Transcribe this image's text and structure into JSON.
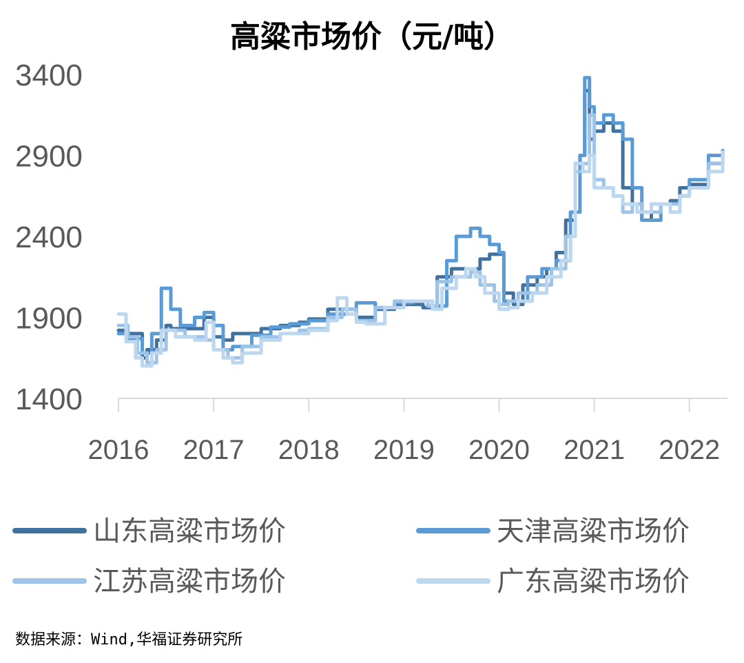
{
  "chart_data": {
    "type": "line",
    "title": "高粱市场价（元/吨）",
    "ylim": [
      1400,
      3400
    ],
    "yticks": [
      1400,
      1900,
      2400,
      2900,
      3400
    ],
    "xlim": [
      2016,
      2022.4
    ],
    "xticks": [
      2016,
      2017,
      2018,
      2019,
      2020,
      2021,
      2022
    ],
    "grid": false,
    "legend_position": "bottom",
    "source": "数据来源：Wind,华福证券研究所",
    "series": [
      {
        "name": "山东高粱市场价",
        "color": "#41719c",
        "x": [
          2016.0,
          2016.1,
          2016.25,
          2016.3,
          2016.4,
          2016.5,
          2016.55,
          2016.65,
          2016.8,
          2016.9,
          2017.0,
          2017.1,
          2017.2,
          2017.3,
          2017.5,
          2017.7,
          2017.9,
          2018.0,
          2018.2,
          2018.4,
          2018.5,
          2018.7,
          2018.9,
          2019.0,
          2019.2,
          2019.35,
          2019.5,
          2019.6,
          2019.7,
          2019.8,
          2019.9,
          2020.0,
          2020.05,
          2020.15,
          2020.25,
          2020.4,
          2020.5,
          2020.6,
          2020.7,
          2020.8,
          2020.85,
          2020.9,
          2020.95,
          2021.0,
          2021.1,
          2021.2,
          2021.3,
          2021.4,
          2021.5,
          2021.6,
          2021.8,
          2021.9,
          2022.0,
          2022.2,
          2022.35
        ],
        "y": [
          1820,
          1800,
          1650,
          1700,
          1760,
          1850,
          1830,
          1830,
          1830,
          1900,
          1780,
          1760,
          1800,
          1800,
          1830,
          1850,
          1870,
          1890,
          1950,
          1950,
          1900,
          1950,
          1980,
          1980,
          1960,
          2150,
          2200,
          2200,
          2200,
          2260,
          2290,
          2290,
          2050,
          1980,
          2100,
          2150,
          2200,
          2300,
          2500,
          2850,
          2900,
          3300,
          3000,
          3050,
          3100,
          3050,
          2700,
          2600,
          2500,
          2600,
          2620,
          2700,
          2720,
          2850,
          2920
        ]
      },
      {
        "name": "天津高粱市场价",
        "color": "#5b9bd5",
        "x": [
          2016.0,
          2016.1,
          2016.25,
          2016.35,
          2016.45,
          2016.55,
          2016.65,
          2016.8,
          2016.9,
          2017.0,
          2017.1,
          2017.2,
          2017.4,
          2017.6,
          2017.8,
          2018.0,
          2018.2,
          2018.4,
          2018.5,
          2018.7,
          2018.9,
          2019.1,
          2019.3,
          2019.45,
          2019.55,
          2019.7,
          2019.8,
          2019.9,
          2020.0,
          2020.05,
          2020.15,
          2020.3,
          2020.45,
          2020.6,
          2020.75,
          2020.85,
          2020.9,
          2020.95,
          2021.0,
          2021.1,
          2021.2,
          2021.3,
          2021.4,
          2021.5,
          2021.7,
          2021.9,
          2022.0,
          2022.2,
          2022.35
        ],
        "y": [
          1800,
          1770,
          1680,
          1800,
          2080,
          1950,
          1850,
          1900,
          1930,
          1850,
          1700,
          1720,
          1790,
          1840,
          1860,
          1880,
          1920,
          1950,
          1990,
          1960,
          1990,
          2000,
          1970,
          2250,
          2400,
          2450,
          2400,
          2350,
          2300,
          2000,
          2000,
          2150,
          2200,
          2250,
          2550,
          2900,
          3380,
          3200,
          3100,
          3150,
          3100,
          3000,
          2700,
          2500,
          2600,
          2650,
          2750,
          2900,
          2930
        ]
      },
      {
        "name": "江苏高粱市场价",
        "color": "#9dc3e6",
        "x": [
          2016.0,
          2016.1,
          2016.2,
          2016.3,
          2016.4,
          2016.5,
          2016.7,
          2016.9,
          2017.0,
          2017.15,
          2017.3,
          2017.5,
          2017.7,
          2017.9,
          2018.0,
          2018.2,
          2018.35,
          2018.5,
          2018.7,
          2018.9,
          2019.1,
          2019.25,
          2019.35,
          2019.5,
          2019.7,
          2019.8,
          2019.95,
          2020.0,
          2020.1,
          2020.2,
          2020.4,
          2020.55,
          2020.7,
          2020.8,
          2020.88,
          2020.95,
          2021.0,
          2021.1,
          2021.2,
          2021.3,
          2021.4,
          2021.5,
          2021.7,
          2021.9,
          2022.0,
          2022.2,
          2022.35
        ],
        "y": [
          1850,
          1780,
          1680,
          1620,
          1700,
          1820,
          1780,
          1760,
          1700,
          1650,
          1720,
          1780,
          1800,
          1820,
          1830,
          1900,
          1950,
          1880,
          1960,
          2000,
          2000,
          1970,
          2120,
          2150,
          2180,
          2100,
          2000,
          1980,
          2000,
          2050,
          2100,
          2200,
          2400,
          2800,
          2850,
          3150,
          2750,
          2700,
          2650,
          2550,
          2600,
          2550,
          2600,
          2650,
          2700,
          2850,
          2920
        ]
      },
      {
        "name": "广东高粱市场价",
        "color": "#bdd7ee",
        "x": [
          2016.0,
          2016.08,
          2016.18,
          2016.25,
          2016.35,
          2016.45,
          2016.6,
          2016.8,
          2016.92,
          2017.0,
          2017.1,
          2017.2,
          2017.3,
          2017.5,
          2017.7,
          2017.9,
          2018.0,
          2018.2,
          2018.3,
          2018.4,
          2018.5,
          2018.6,
          2018.8,
          2019.0,
          2019.2,
          2019.3,
          2019.4,
          2019.55,
          2019.65,
          2019.75,
          2019.85,
          2020.0,
          2020.1,
          2020.2,
          2020.35,
          2020.5,
          2020.65,
          2020.75,
          2020.8,
          2020.88,
          2020.95,
          2021.0,
          2021.1,
          2021.2,
          2021.3,
          2021.45,
          2021.6,
          2021.8,
          2021.9,
          2022.0,
          2022.2,
          2022.35
        ],
        "y": [
          1920,
          1750,
          1650,
          1600,
          1680,
          1820,
          1780,
          1760,
          1870,
          1700,
          1650,
          1620,
          1680,
          1760,
          1800,
          1800,
          1820,
          1880,
          2020,
          1920,
          1870,
          1860,
          1960,
          2000,
          2000,
          1950,
          2080,
          2150,
          2200,
          2150,
          2050,
          1950,
          1960,
          2000,
          2050,
          2150,
          2250,
          2400,
          2850,
          2800,
          2900,
          2700,
          2700,
          2650,
          2600,
          2550,
          2600,
          2550,
          2650,
          2700,
          2800,
          2920
        ]
      }
    ]
  }
}
